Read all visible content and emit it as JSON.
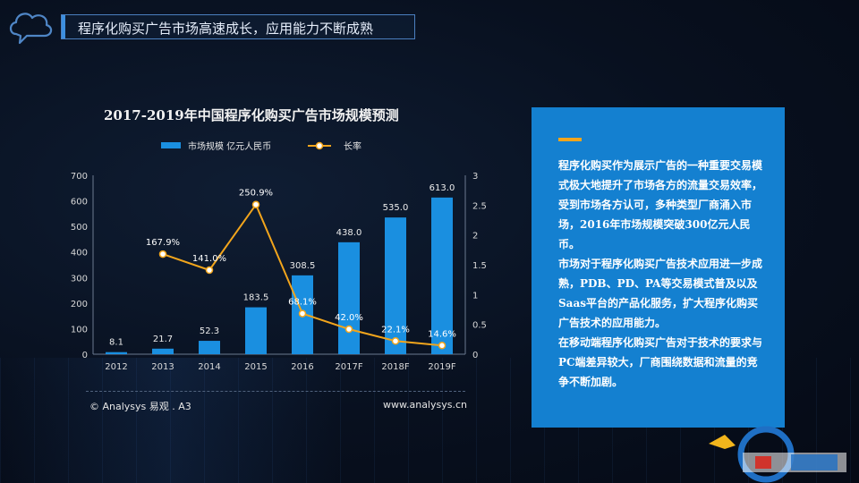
{
  "header": {
    "title": "程序化购买广告市场高速成长，应用能力不断成熟"
  },
  "chart_data": {
    "type": "bar",
    "title": "2017-2019年中国程序化购买广告市场规模预测",
    "categories": [
      "2012",
      "2013",
      "2014",
      "2015",
      "2016",
      "2017F",
      "2018F",
      "2019F"
    ],
    "series": [
      {
        "name": "市场规模  亿元人民币",
        "type": "bar",
        "axis": "left",
        "values": [
          8.1,
          21.7,
          52.3,
          183.5,
          308.5,
          438.0,
          535.0,
          613.0
        ],
        "labels": [
          "8.1",
          "21.7",
          "52.3",
          "183.5",
          "308.5",
          "438.0",
          "535.0",
          "613.0"
        ],
        "color": "#1a8fe0"
      },
      {
        "name": "长率",
        "type": "line",
        "axis": "right",
        "values": [
          null,
          1.679,
          1.41,
          2.509,
          0.681,
          0.42,
          0.221,
          0.146
        ],
        "labels": [
          "",
          "167.9%",
          "141.0%",
          "250.9%",
          "68.1%",
          "42.0%",
          "22.1%",
          "14.6%"
        ],
        "color": "#f2a51c"
      }
    ],
    "y_left": {
      "min": 0,
      "max": 700,
      "ticks": [
        "0",
        "100",
        "200",
        "300",
        "400",
        "500",
        "600",
        "700"
      ]
    },
    "y_right": {
      "min": 0,
      "max": 3,
      "ticks": [
        "0",
        "0.5",
        "1",
        "1.5",
        "2",
        "2.5",
        "3"
      ]
    },
    "grid": false,
    "legend": "top"
  },
  "footer": {
    "source": "© Analysys 易观 . A3",
    "url": "www.analysys.cn"
  },
  "side_panel": {
    "accent_color": "#f2a51c",
    "background": "#1480d0",
    "paragraphs": [
      "程序化购买作为展示广告的一种重要交易模式极大地提升了市场各方的流量交易效率，受到市场各方认可，多种类型厂商涌入市场，2016年市场规模突破300亿元人民币。",
      "市场对于程序化购买广告技术应用进一步成熟，PDB、PD、PA等交易模式普及以及Saas平台的产品化服务，扩大程序化购买广告技术的应用能力。",
      "在移动端程序化购买广告对于技术的要求与PC端差异较大，厂商围绕数据和流量的竞争不断加剧。"
    ]
  },
  "icons": [
    "chat-cloud-icon",
    "brand-watermark-icon"
  ]
}
